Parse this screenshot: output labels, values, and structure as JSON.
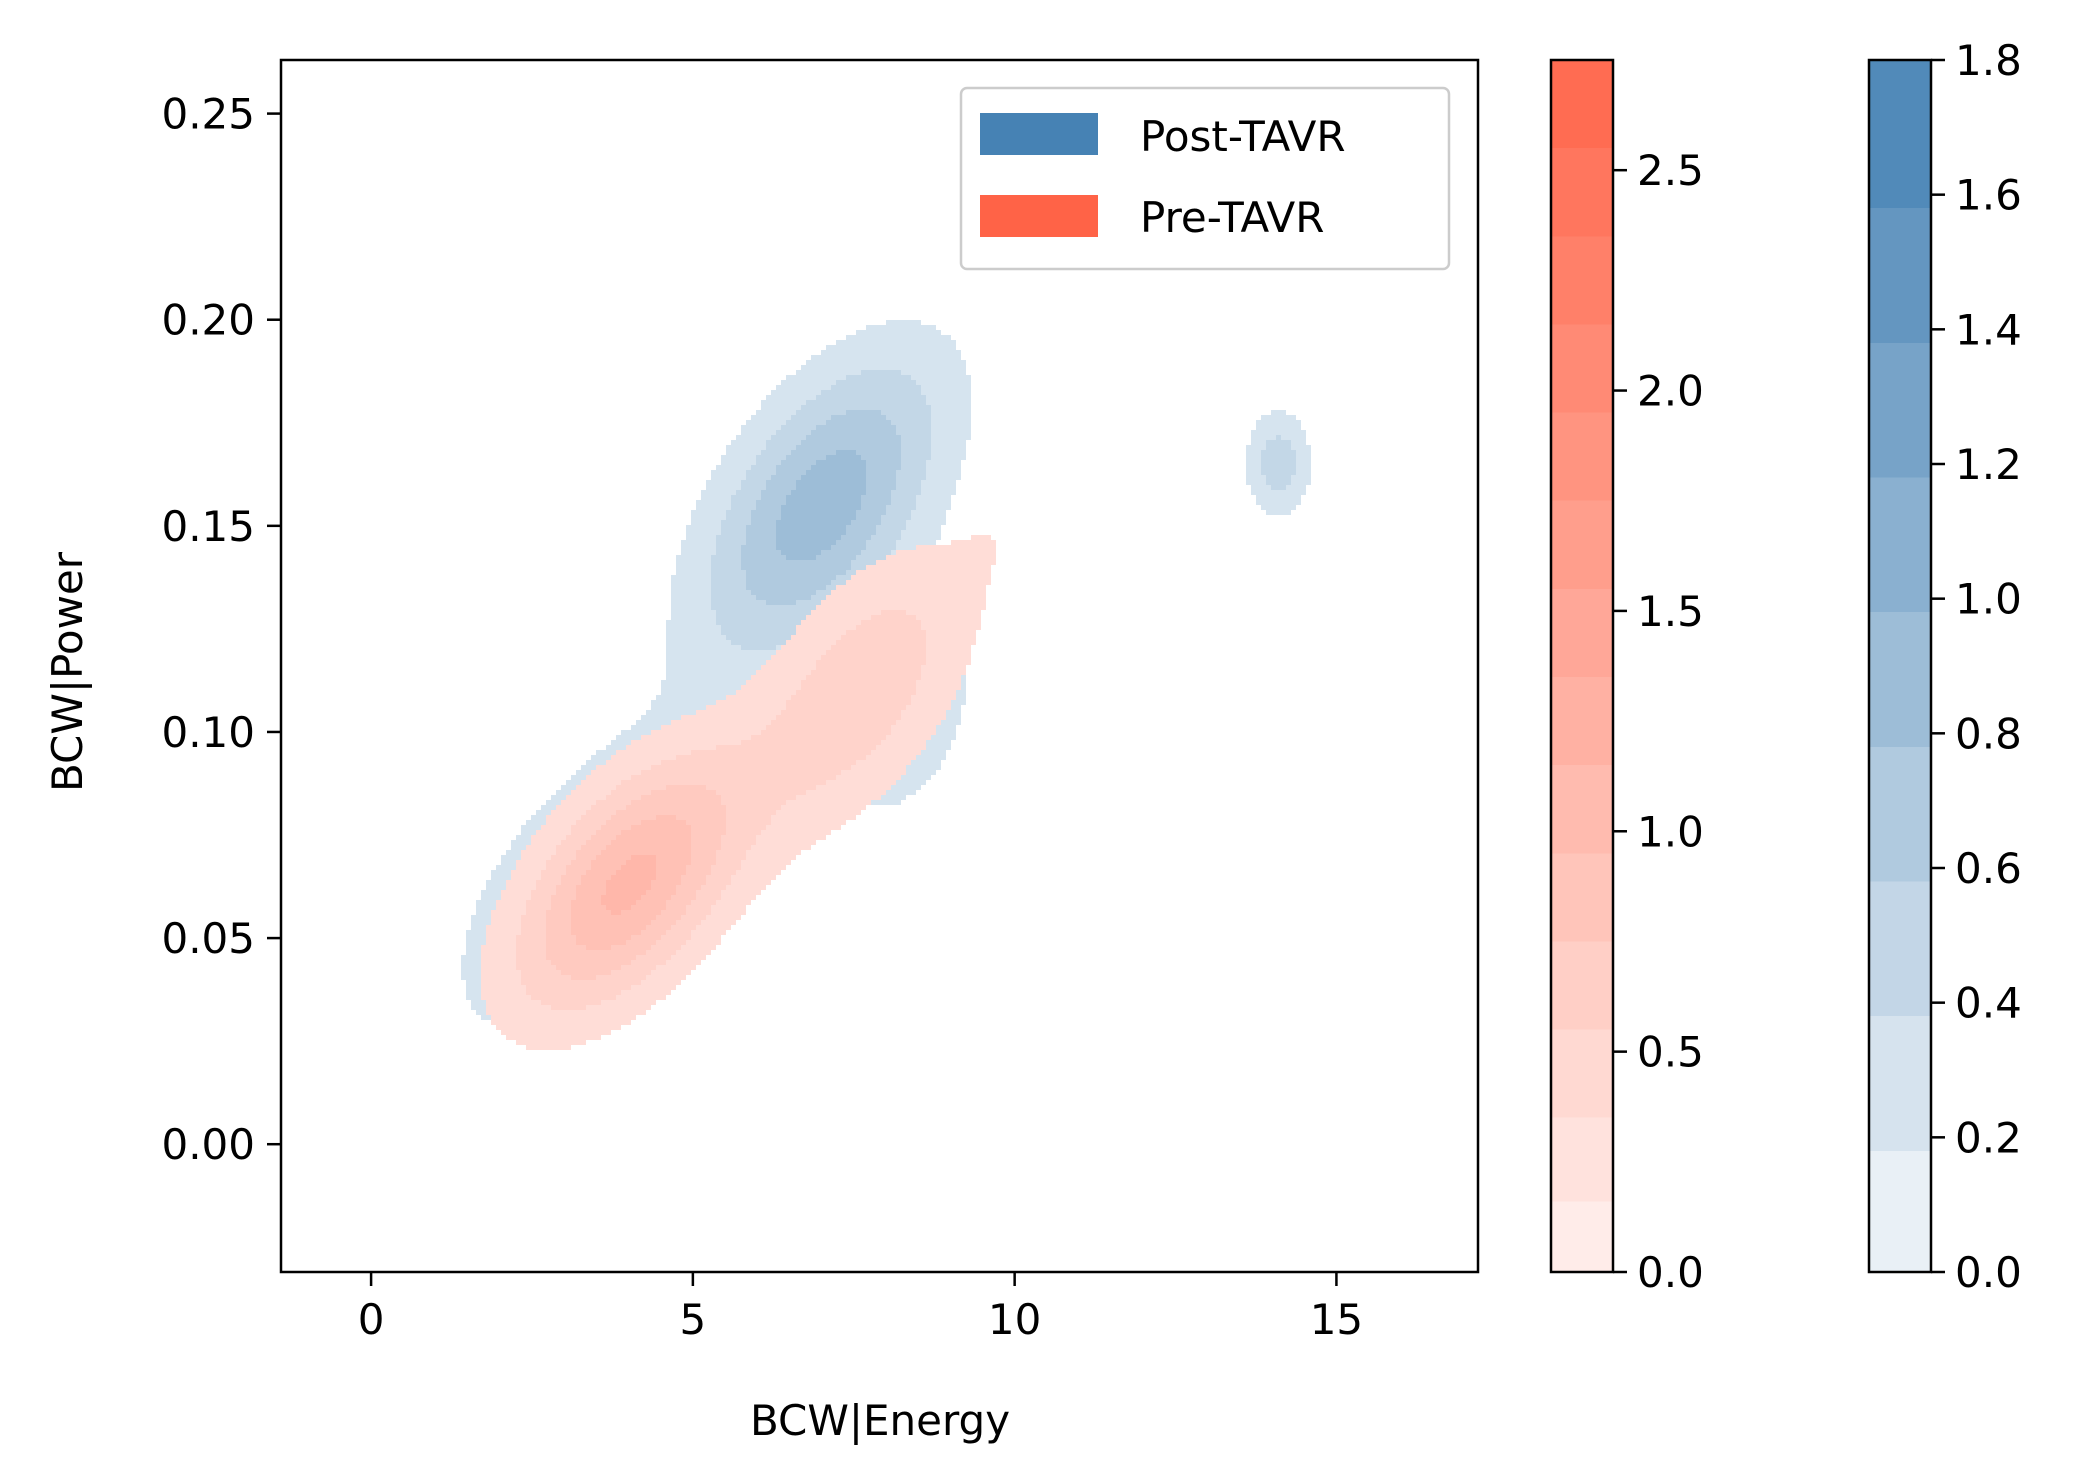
{
  "chart_data": {
    "type": "kde-contour",
    "title": "",
    "xlabel": "BCW|Energy",
    "ylabel": "BCW|Power",
    "xlim": [
      -1.4,
      17.2
    ],
    "ylim": [
      -0.031,
      0.263
    ],
    "xticks": [
      0,
      5,
      10,
      15
    ],
    "xtick_labels": [
      "0",
      "5",
      "10",
      "15"
    ],
    "yticks": [
      0.0,
      0.05,
      0.1,
      0.15,
      0.2,
      0.25
    ],
    "ytick_labels": [
      "0.00",
      "0.05",
      "0.10",
      "0.15",
      "0.20",
      "0.25"
    ],
    "legend": {
      "position": "top-right",
      "entries": [
        {
          "label": "Post-TAVR",
          "color": "#4682b4"
        },
        {
          "label": "Pre-TAVR",
          "color": "#ff6347"
        }
      ]
    },
    "series": [
      {
        "name": "Post-TAVR",
        "color": "#4682b4",
        "kernels": [
          {
            "x": 7.0,
            "y": 0.155,
            "w": 0.9,
            "sx": 1.3,
            "sy": 0.025,
            "rho": 0.55
          },
          {
            "x": 3.6,
            "y": 0.065,
            "w": 0.6,
            "sx": 1.4,
            "sy": 0.024,
            "rho": 0.6
          },
          {
            "x": 8.2,
            "y": 0.105,
            "w": 0.35,
            "sx": 0.9,
            "sy": 0.02,
            "rho": 0.3
          },
          {
            "x": 14.1,
            "y": 0.165,
            "w": 0.5,
            "sx": 0.35,
            "sy": 0.009,
            "rho": 0.0
          }
        ],
        "levels": [
          0.18,
          0.38,
          0.58,
          0.78,
          0.98,
          1.18,
          1.38,
          1.58
        ],
        "colorbar": {
          "ticks": [
            0.0,
            0.2,
            0.4,
            0.6,
            0.8,
            1.0,
            1.2,
            1.4,
            1.6,
            1.8
          ],
          "tick_labels": [
            "0.0",
            "0.2",
            "0.4",
            "0.6",
            "0.8",
            "1.0",
            "1.2",
            "1.4",
            "1.6",
            "1.8"
          ],
          "range": [
            0.0,
            1.8
          ]
        }
      },
      {
        "name": "Pre-TAVR",
        "color": "#ff6347",
        "kernels": [
          {
            "x": 4.0,
            "y": 0.063,
            "w": 1.0,
            "sx": 1.2,
            "sy": 0.021,
            "rho": 0.55
          },
          {
            "x": 7.6,
            "y": 0.11,
            "w": 0.5,
            "sx": 1.2,
            "sy": 0.023,
            "rho": 0.55
          },
          {
            "x": 9.8,
            "y": 0.15,
            "w": 0.08,
            "sx": 0.5,
            "sy": 0.012,
            "rho": 0.3
          }
        ],
        "levels": [
          0.16,
          0.35,
          0.55,
          0.75,
          0.95,
          1.15,
          1.35,
          1.55,
          1.75,
          1.95,
          2.15,
          2.35,
          2.55
        ],
        "colorbar": {
          "ticks": [
            0.0,
            0.5,
            1.0,
            1.5,
            2.0,
            2.5
          ],
          "tick_labels": [
            "0.0",
            "0.5",
            "1.0",
            "1.5",
            "2.0",
            "2.5"
          ],
          "range": [
            0.0,
            2.75
          ]
        }
      }
    ]
  }
}
